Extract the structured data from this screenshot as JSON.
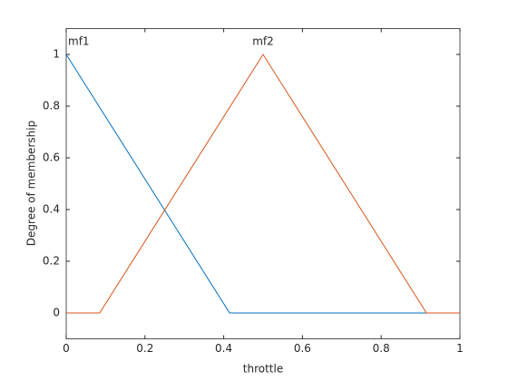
{
  "chart_data": {
    "type": "line",
    "xlabel": "throttle",
    "ylabel": "Degree of membership",
    "xlim": [
      0,
      1
    ],
    "ylim": [
      -0.1,
      1.1
    ],
    "xticks": [
      0,
      0.2,
      0.4,
      0.6,
      0.8,
      1
    ],
    "yticks": [
      0,
      0.2,
      0.4,
      0.6,
      0.8,
      1
    ],
    "grid": false,
    "series": [
      {
        "name": "mf1",
        "color": "#0072bd",
        "x": [
          0,
          0.415,
          1
        ],
        "values": [
          1,
          0,
          0
        ]
      },
      {
        "name": "mf2",
        "color": "#d95319",
        "x": [
          0,
          0.085,
          0.5,
          0.915,
          1
        ],
        "values": [
          0,
          0,
          1,
          0,
          0
        ]
      }
    ]
  }
}
